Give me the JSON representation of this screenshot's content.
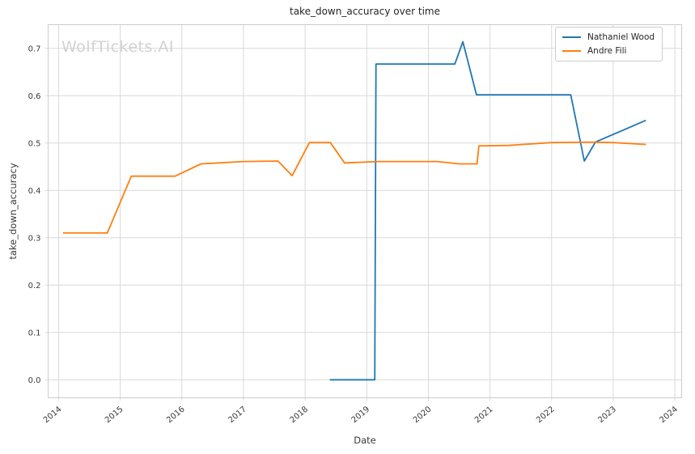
{
  "watermark": {
    "text": "WolfTickets.AI"
  },
  "chart_data": {
    "type": "line",
    "title": "take_down_accuracy over time",
    "xlabel": "Date",
    "ylabel": "take_down_accuracy",
    "xlim": [
      2013.83,
      2024.11
    ],
    "ylim": [
      -0.038,
      0.75
    ],
    "x_tick_labels": [
      "2014",
      "2015",
      "2016",
      "2017",
      "2018",
      "2019",
      "2020",
      "2021",
      "2022",
      "2023",
      "2024"
    ],
    "y_tick_labels": [
      "0.0",
      "0.1",
      "0.2",
      "0.3",
      "0.4",
      "0.5",
      "0.6",
      "0.7"
    ],
    "grid": true,
    "legend_position": "upper right",
    "series": [
      {
        "name": "Nathaniel Wood",
        "color": "#1f77b4",
        "points": [
          [
            2018.4,
            0.0
          ],
          [
            2019.13,
            0.0
          ],
          [
            2019.15,
            0.667
          ],
          [
            2020.43,
            0.667
          ],
          [
            2020.56,
            0.714
          ],
          [
            2020.78,
            0.602
          ],
          [
            2022.31,
            0.602
          ],
          [
            2022.53,
            0.462
          ],
          [
            2022.71,
            0.502
          ],
          [
            2023.53,
            0.548
          ]
        ]
      },
      {
        "name": "Andre Fili",
        "color": "#ff7f0e",
        "points": [
          [
            2014.07,
            0.31
          ],
          [
            2014.79,
            0.31
          ],
          [
            2015.18,
            0.43
          ],
          [
            2015.89,
            0.43
          ],
          [
            2016.31,
            0.456
          ],
          [
            2017.0,
            0.461
          ],
          [
            2017.56,
            0.462
          ],
          [
            2017.79,
            0.431
          ],
          [
            2018.07,
            0.501
          ],
          [
            2018.41,
            0.501
          ],
          [
            2018.64,
            0.458
          ],
          [
            2019.2,
            0.461
          ],
          [
            2020.15,
            0.461
          ],
          [
            2020.5,
            0.456
          ],
          [
            2020.79,
            0.456
          ],
          [
            2020.82,
            0.494
          ],
          [
            2021.3,
            0.495
          ],
          [
            2022.0,
            0.501
          ],
          [
            2022.6,
            0.502
          ],
          [
            2023.0,
            0.501
          ],
          [
            2023.53,
            0.497
          ]
        ]
      }
    ]
  },
  "colors": {
    "grid": "#d9d9d9",
    "spine": "#cccccc",
    "tick_text": "#3a3a3a",
    "title_text": "#262626",
    "watermark": "#d2d2d2",
    "background": "#ffffff"
  }
}
